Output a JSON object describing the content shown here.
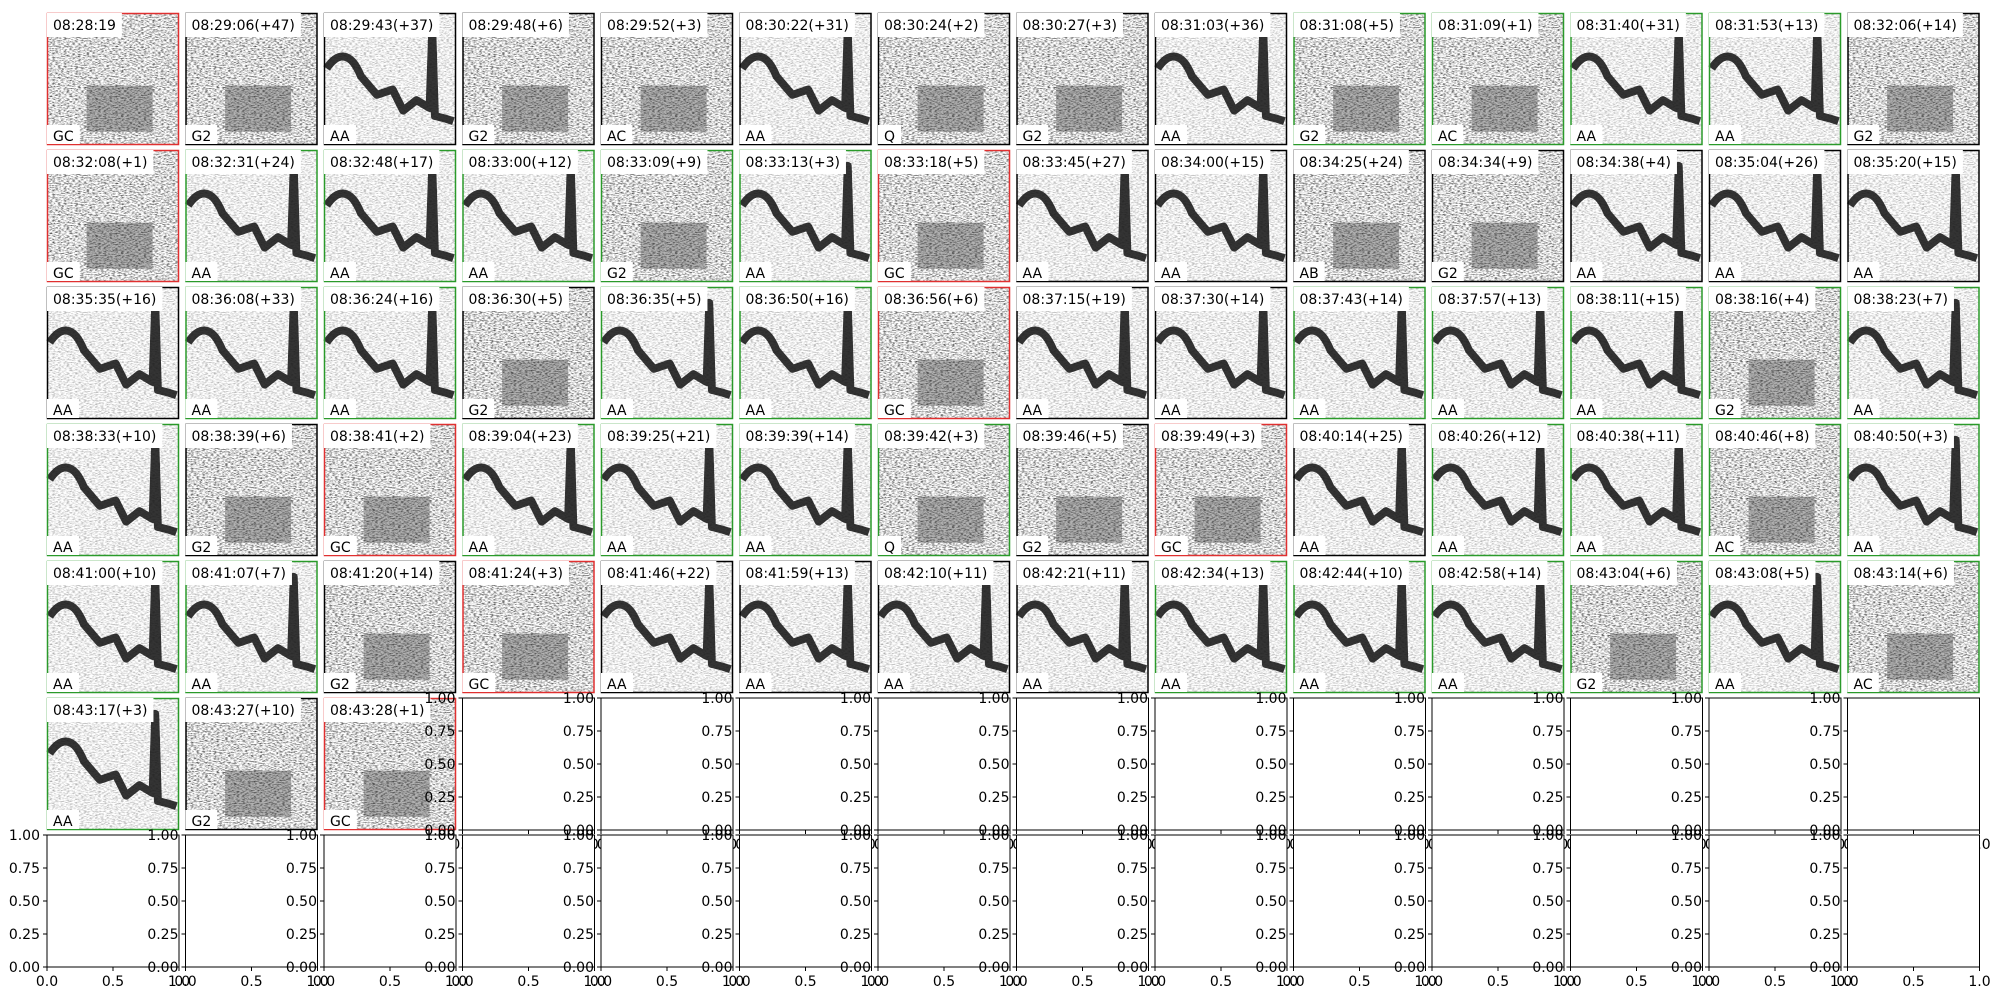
{
  "panels": [
    {
      "time": "08:28:19",
      "label": "GC",
      "border": "#e03030"
    },
    {
      "time": "08:29:06(+47)",
      "label": "G2",
      "border": "#000000"
    },
    {
      "time": "08:29:43(+37)",
      "label": "AA",
      "border": "#000000"
    },
    {
      "time": "08:29:48(+6)",
      "label": "G2",
      "border": "#000000"
    },
    {
      "time": "08:29:52(+3)",
      "label": "AC",
      "border": "#000000"
    },
    {
      "time": "08:30:22(+31)",
      "label": "AA",
      "border": "#000000"
    },
    {
      "time": "08:30:24(+2)",
      "label": "Q",
      "border": "#000000"
    },
    {
      "time": "08:30:27(+3)",
      "label": "G2",
      "border": "#000000"
    },
    {
      "time": "08:31:03(+36)",
      "label": "AA",
      "border": "#000000"
    },
    {
      "time": "08:31:08(+5)",
      "label": "G2",
      "border": "#2a9a2a"
    },
    {
      "time": "08:31:09(+1)",
      "label": "AC",
      "border": "#2a9a2a"
    },
    {
      "time": "08:31:40(+31)",
      "label": "AA",
      "border": "#2a9a2a"
    },
    {
      "time": "08:31:53(+13)",
      "label": "AA",
      "border": "#2a9a2a"
    },
    {
      "time": "08:32:06(+14)",
      "label": "G2",
      "border": "#000000"
    },
    {
      "time": "08:32:08(+1)",
      "label": "GC",
      "border": "#e03030"
    },
    {
      "time": "08:32:31(+24)",
      "label": "AA",
      "border": "#2a9a2a"
    },
    {
      "time": "08:32:48(+17)",
      "label": "AA",
      "border": "#2a9a2a"
    },
    {
      "time": "08:33:00(+12)",
      "label": "AA",
      "border": "#2a9a2a"
    },
    {
      "time": "08:33:09(+9)",
      "label": "G2",
      "border": "#2a9a2a"
    },
    {
      "time": "08:33:13(+3)",
      "label": "AA",
      "border": "#2a9a2a"
    },
    {
      "time": "08:33:18(+5)",
      "label": "GC",
      "border": "#e03030"
    },
    {
      "time": "08:33:45(+27)",
      "label": "AA",
      "border": "#000000"
    },
    {
      "time": "08:34:00(+15)",
      "label": "AA",
      "border": "#000000"
    },
    {
      "time": "08:34:25(+24)",
      "label": "AB",
      "border": "#000000"
    },
    {
      "time": "08:34:34(+9)",
      "label": "G2",
      "border": "#000000"
    },
    {
      "time": "08:34:38(+4)",
      "label": "AA",
      "border": "#000000"
    },
    {
      "time": "08:35:04(+26)",
      "label": "AA",
      "border": "#000000"
    },
    {
      "time": "08:35:20(+15)",
      "label": "AA",
      "border": "#000000"
    },
    {
      "time": "08:35:35(+16)",
      "label": "AA",
      "border": "#000000"
    },
    {
      "time": "08:36:08(+33)",
      "label": "AA",
      "border": "#2a9a2a"
    },
    {
      "time": "08:36:24(+16)",
      "label": "AA",
      "border": "#2a9a2a"
    },
    {
      "time": "08:36:30(+5)",
      "label": "G2",
      "border": "#000000"
    },
    {
      "time": "08:36:35(+5)",
      "label": "AA",
      "border": "#2a9a2a"
    },
    {
      "time": "08:36:50(+16)",
      "label": "AA",
      "border": "#2a9a2a"
    },
    {
      "time": "08:36:56(+6)",
      "label": "GC",
      "border": "#e03030"
    },
    {
      "time": "08:37:15(+19)",
      "label": "AA",
      "border": "#000000"
    },
    {
      "time": "08:37:30(+14)",
      "label": "AA",
      "border": "#000000"
    },
    {
      "time": "08:37:43(+14)",
      "label": "AA",
      "border": "#2a9a2a"
    },
    {
      "time": "08:37:57(+13)",
      "label": "AA",
      "border": "#2a9a2a"
    },
    {
      "time": "08:38:11(+15)",
      "label": "AA",
      "border": "#2a9a2a"
    },
    {
      "time": "08:38:16(+4)",
      "label": "G2",
      "border": "#2a9a2a"
    },
    {
      "time": "08:38:23(+7)",
      "label": "AA",
      "border": "#2a9a2a"
    },
    {
      "time": "08:38:33(+10)",
      "label": "AA",
      "border": "#2a9a2a"
    },
    {
      "time": "08:38:39(+6)",
      "label": "G2",
      "border": "#000000"
    },
    {
      "time": "08:38:41(+2)",
      "label": "GC",
      "border": "#e03030"
    },
    {
      "time": "08:39:04(+23)",
      "label": "AA",
      "border": "#2a9a2a"
    },
    {
      "time": "08:39:25(+21)",
      "label": "AA",
      "border": "#2a9a2a"
    },
    {
      "time": "08:39:39(+14)",
      "label": "AA",
      "border": "#2a9a2a"
    },
    {
      "time": "08:39:42(+3)",
      "label": "Q",
      "border": "#2a9a2a"
    },
    {
      "time": "08:39:46(+5)",
      "label": "G2",
      "border": "#000000"
    },
    {
      "time": "08:39:49(+3)",
      "label": "GC",
      "border": "#e03030"
    },
    {
      "time": "08:40:14(+25)",
      "label": "AA",
      "border": "#000000"
    },
    {
      "time": "08:40:26(+12)",
      "label": "AA",
      "border": "#2a9a2a"
    },
    {
      "time": "08:40:38(+11)",
      "label": "AA",
      "border": "#2a9a2a"
    },
    {
      "time": "08:40:46(+8)",
      "label": "AC",
      "border": "#2a9a2a"
    },
    {
      "time": "08:40:50(+3)",
      "label": "AA",
      "border": "#2a9a2a"
    },
    {
      "time": "08:41:00(+10)",
      "label": "AA",
      "border": "#2a9a2a"
    },
    {
      "time": "08:41:07(+7)",
      "label": "AA",
      "border": "#2a9a2a"
    },
    {
      "time": "08:41:20(+14)",
      "label": "G2",
      "border": "#000000"
    },
    {
      "time": "08:41:24(+3)",
      "label": "GC",
      "border": "#e03030"
    },
    {
      "time": "08:41:46(+22)",
      "label": "AA",
      "border": "#000000"
    },
    {
      "time": "08:41:59(+13)",
      "label": "AA",
      "border": "#000000"
    },
    {
      "time": "08:42:10(+11)",
      "label": "AA",
      "border": "#000000"
    },
    {
      "time": "08:42:21(+11)",
      "label": "AA",
      "border": "#000000"
    },
    {
      "time": "08:42:34(+13)",
      "label": "AA",
      "border": "#2a9a2a"
    },
    {
      "time": "08:42:44(+10)",
      "label": "AA",
      "border": "#2a9a2a"
    },
    {
      "time": "08:42:58(+14)",
      "label": "AA",
      "border": "#2a9a2a"
    },
    {
      "time": "08:43:04(+6)",
      "label": "G2",
      "border": "#2a9a2a"
    },
    {
      "time": "08:43:08(+5)",
      "label": "AA",
      "border": "#2a9a2a"
    },
    {
      "time": "08:43:14(+6)",
      "label": "AC",
      "border": "#2a9a2a"
    },
    {
      "time": "08:43:17(+3)",
      "label": "AA",
      "border": "#2a9a2a"
    },
    {
      "time": "08:43:27(+10)",
      "label": "G2",
      "border": "#000000"
    },
    {
      "time": "08:43:28(+1)",
      "label": "GC",
      "border": "#e03030"
    }
  ],
  "empty_axes": {
    "yticks": [
      {
        "value": 0,
        "label": "0.00"
      },
      {
        "value": 0.25,
        "label": "0.25"
      },
      {
        "value": 0.5,
        "label": "0.50"
      },
      {
        "value": 0.75,
        "label": "0.75"
      },
      {
        "value": 1,
        "label": "1.00"
      }
    ],
    "xticks": [
      {
        "value": 0,
        "label": "0.0"
      },
      {
        "value": 0.5,
        "label": "0.5"
      },
      {
        "value": 1,
        "label": "1.0"
      }
    ]
  }
}
